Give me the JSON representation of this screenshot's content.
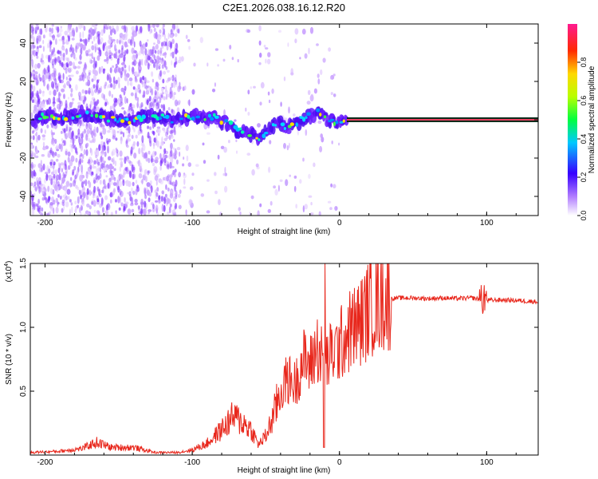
{
  "title": "C2E1.2026.038.16.12.R20",
  "colors": {
    "trace": "#e8271c",
    "axis": "#000000",
    "band_outer": "#0a2a1a",
    "band_inner": "#e84060"
  },
  "chart_data": [
    {
      "type": "heatmap",
      "title": "C2E1.2026.038.16.12.R20",
      "xlabel": "Height of straight line (km)",
      "ylabel": "Frequency (Hz)",
      "xlim": [
        -210,
        135
      ],
      "ylim": [
        -50,
        50
      ],
      "x_ticks": [
        -200,
        -100,
        0,
        100
      ],
      "y_ticks": [
        -40,
        -20,
        0,
        20,
        40
      ],
      "colorbar": {
        "label": "Normalized spectral amplitude",
        "range": [
          0,
          1
        ],
        "ticks": [
          0.0,
          0.2,
          0.4,
          0.6,
          0.8
        ]
      },
      "ridge": {
        "x": [
          -205,
          -195,
          -185,
          -175,
          -165,
          -155,
          -145,
          -135,
          -125,
          -115,
          -105,
          -95,
          -85,
          -75,
          -70,
          -65,
          -60,
          -55,
          -50,
          -45,
          -40,
          -35,
          -30,
          -25,
          -20,
          -15,
          -10,
          -5,
          0,
          5,
          135
        ],
        "y": [
          1,
          2,
          1,
          3,
          2,
          0,
          -1,
          1,
          2,
          0,
          1,
          1,
          1,
          -2,
          -5,
          -6,
          -8,
          -10,
          -6,
          -3,
          -2,
          -4,
          -2,
          0,
          2,
          4,
          1,
          -1,
          -1,
          0,
          0
        ]
      }
    },
    {
      "type": "line",
      "xlabel": "Height of straight line (km)",
      "ylabel": "SNR (10 * v/v)",
      "y_multiplier": "(x10",
      "y_multiplier_exp": "4",
      "xlim": [
        -210,
        135
      ],
      "ylim": [
        0,
        15000
      ],
      "x_ticks": [
        -200,
        -100,
        0,
        100
      ],
      "y_ticks": [
        0.5,
        1.0,
        1.5
      ],
      "series": [
        {
          "name": "SNR",
          "x": [
            -210,
            -190,
            -175,
            -165,
            -155,
            -140,
            -125,
            -110,
            -100,
            -90,
            -80,
            -72,
            -65,
            -60,
            -55,
            -50,
            -45,
            -40,
            -35,
            -30,
            -25,
            -20,
            -15,
            -10,
            -5,
            0,
            5,
            10,
            15,
            20,
            25,
            30,
            40,
            50,
            60,
            70,
            80,
            90,
            95,
            100,
            110,
            120,
            135
          ],
          "values": [
            200,
            300,
            500,
            1000,
            600,
            600,
            200,
            200,
            400,
            900,
            2000,
            3000,
            2500,
            2000,
            800,
            1500,
            3000,
            5000,
            6000,
            5500,
            7500,
            7000,
            8500,
            7000,
            8000,
            8500,
            9500,
            10000,
            10500,
            11500,
            12000,
            12200,
            12300,
            12300,
            12250,
            12300,
            12250,
            12300,
            12200,
            12100,
            12150,
            12100,
            12000
          ]
        }
      ]
    }
  ]
}
